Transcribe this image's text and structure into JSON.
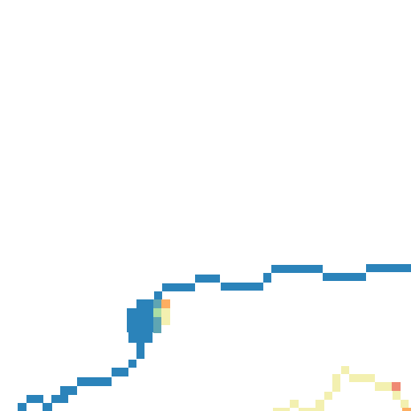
{
  "map": {
    "kind": "raster-tile",
    "background_color": "#ffffff",
    "palette": {
      "river_blue": "#2b83ba",
      "teal": "#5fa5b3",
      "light_green": "#abdda4",
      "pale_yellow": "#f3f0b0",
      "orange": "#fdae61",
      "salmon": "#ef8a74"
    },
    "layers": [
      {
        "name": "river-line",
        "color_key": "river_blue"
      },
      {
        "name": "river-pool",
        "color_key": "river_blue"
      },
      {
        "name": "pool-edge-highlight",
        "color_key": "mixed"
      },
      {
        "name": "trail-line",
        "color_key": "pale_yellow"
      }
    ]
  }
}
